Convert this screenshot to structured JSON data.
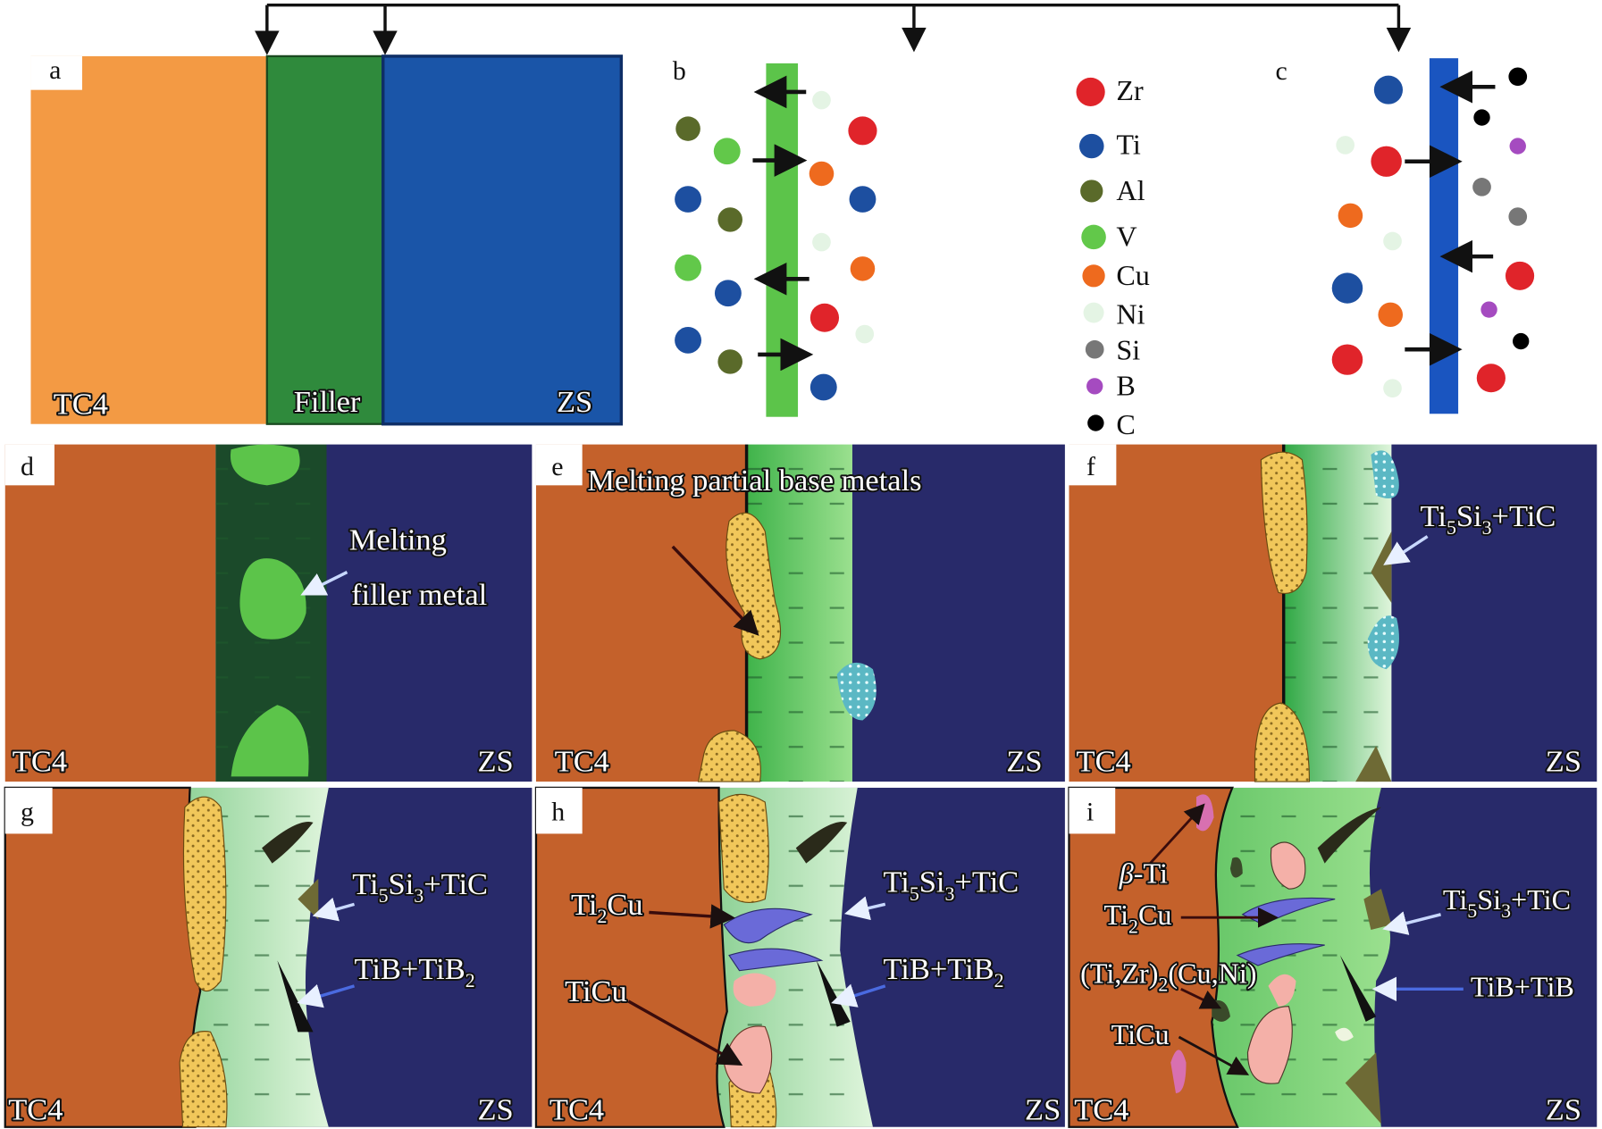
{
  "panel_letters": [
    "a",
    "b",
    "c",
    "d",
    "e",
    "f",
    "g",
    "h",
    "i"
  ],
  "panel_a": {
    "left": "TC4",
    "middle": "Filler",
    "right": "ZS"
  },
  "side_labels": {
    "left": "TC4",
    "right": "ZS"
  },
  "legend": [
    {
      "label": "Zr",
      "color": "#e0242a"
    },
    {
      "label": "Ti",
      "color": "#1d4fa0"
    },
    {
      "label": "Al",
      "color": "#5a6a2a"
    },
    {
      "label": "V",
      "color": "#62c84a"
    },
    {
      "label": "Cu",
      "color": "#ee6a1e"
    },
    {
      "label": "Ni",
      "color": "#e4f4e4"
    },
    {
      "label": "Si",
      "color": "#777777"
    },
    {
      "label": "B",
      "color": "#a54bc0"
    },
    {
      "label": "C",
      "color": "#000000"
    }
  ],
  "annotations": {
    "d": [
      "Melting",
      "filler metal"
    ],
    "e": "Melting partial base metals",
    "ti5si3_tic": [
      "Ti",
      "5",
      "Si",
      "3",
      "+TiC"
    ],
    "tib_tib2": [
      "TiB+TiB",
      "2"
    ],
    "ti2cu": [
      "Ti",
      "2",
      "Cu"
    ],
    "ticu": "TiCu",
    "beta_ti": [
      "β",
      "-Ti"
    ],
    "tizr_cuni": [
      "(Ti,Zr)",
      "2",
      "(Cu,Ni)"
    ],
    "tib_tib_i": "TiB+TiB"
  },
  "colors": {
    "tc4": "#c4612b",
    "zs": "#282a6a",
    "filler": "#2f8a3c",
    "tc4_a": "#f39a44",
    "zs_a": "#1a55a8"
  }
}
